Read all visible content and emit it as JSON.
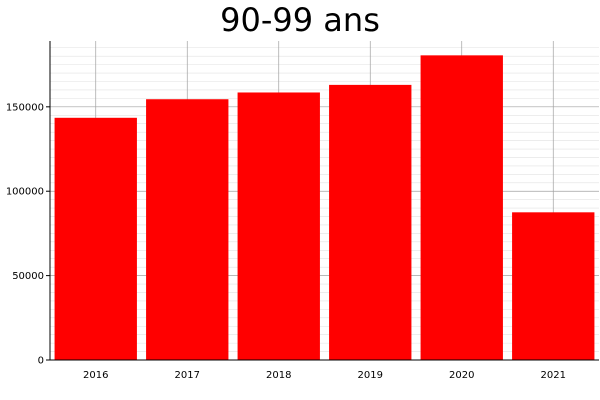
{
  "chart_data": {
    "type": "bar",
    "title": "90-99 ans",
    "xlabel": "",
    "ylabel": "",
    "categories": [
      "2016",
      "2017",
      "2018",
      "2019",
      "2020",
      "2021"
    ],
    "values": [
      143500,
      154500,
      158500,
      163000,
      180500,
      87500
    ],
    "ylim": [
      0,
      189000
    ],
    "yticks": [
      0,
      50000,
      100000,
      150000
    ],
    "ytick_labels": [
      "0",
      "50000",
      "100000",
      "150000"
    ],
    "minor_tick_step": 5000,
    "grid": true,
    "legend": "none",
    "bar_color": "#ff0000",
    "grid_major_color": "#a0a0a0",
    "grid_minor_color": "#e2e2e2"
  }
}
